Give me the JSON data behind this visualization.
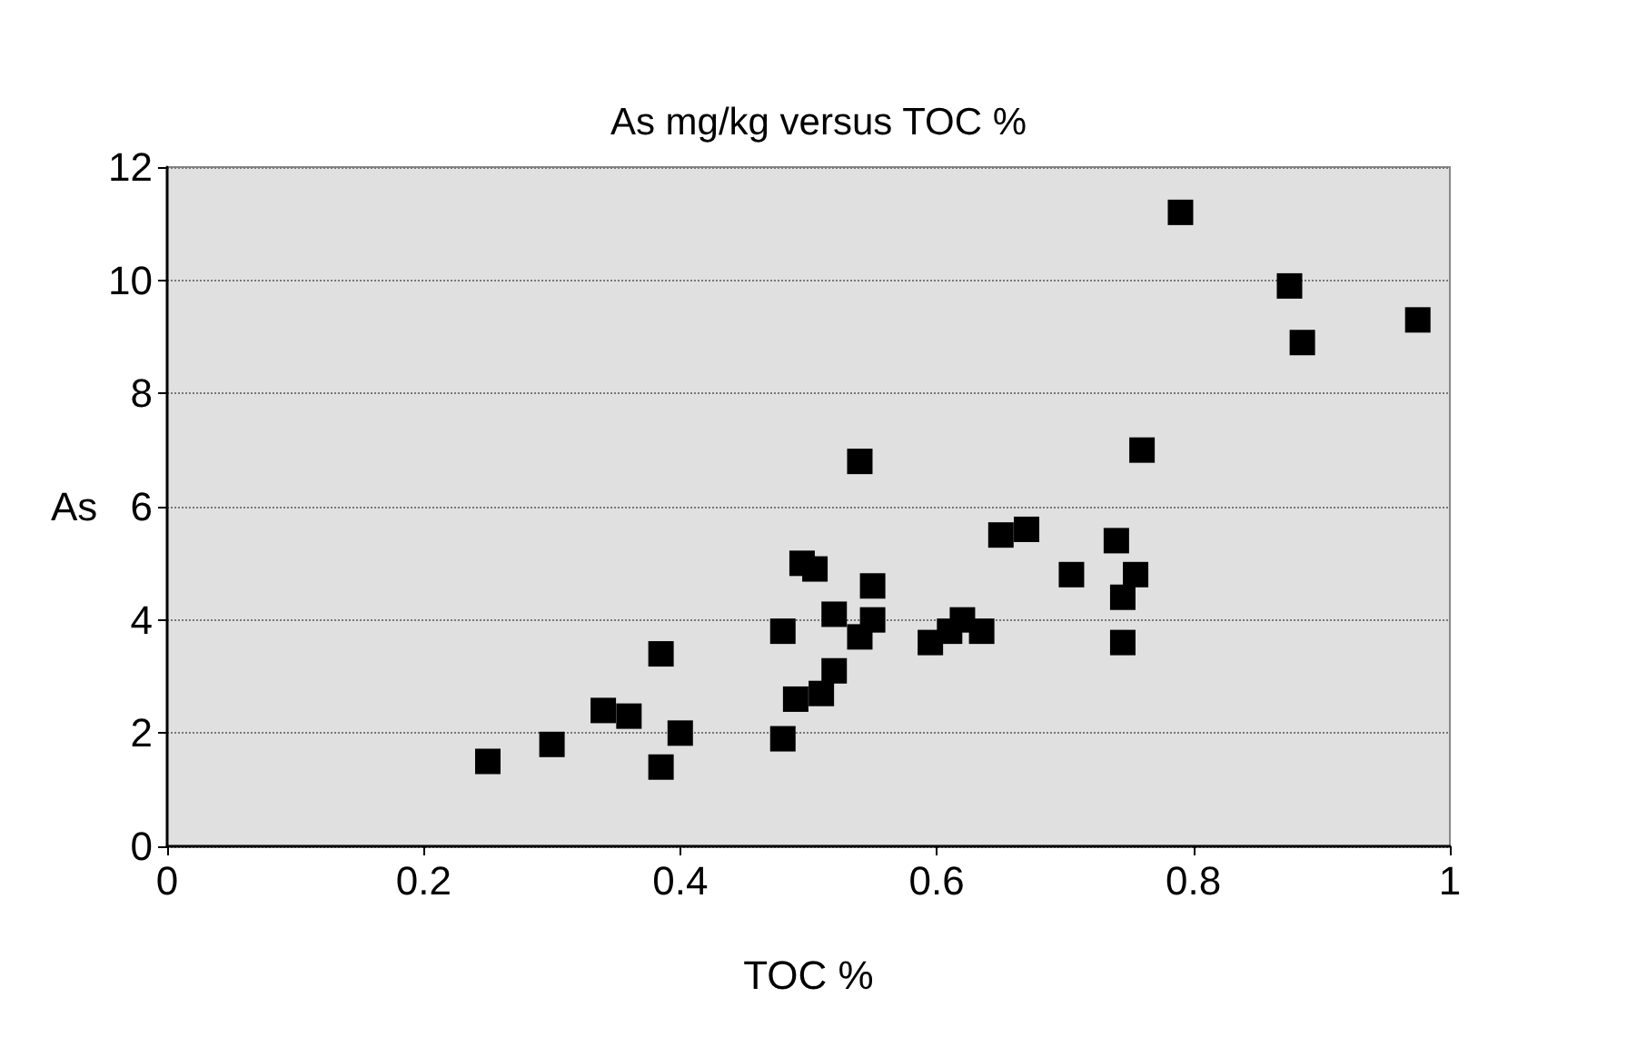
{
  "chart_data": {
    "type": "scatter",
    "title": "As mg/kg versus TOC %",
    "xlabel": "TOC %",
    "ylabel": "As",
    "x": [
      0.25,
      0.3,
      0.34,
      0.36,
      0.385,
      0.385,
      0.4,
      0.48,
      0.48,
      0.49,
      0.495,
      0.505,
      0.51,
      0.52,
      0.52,
      0.54,
      0.54,
      0.55,
      0.55,
      0.595,
      0.61,
      0.62,
      0.635,
      0.65,
      0.67,
      0.705,
      0.74,
      0.745,
      0.745,
      0.755,
      0.76,
      0.79,
      0.875,
      0.885,
      0.975
    ],
    "values": [
      1.5,
      1.8,
      2.4,
      2.3,
      3.4,
      1.4,
      2.0,
      1.9,
      3.8,
      2.6,
      5.0,
      4.9,
      2.7,
      4.1,
      3.1,
      3.7,
      6.8,
      4.0,
      4.6,
      3.6,
      3.8,
      4.0,
      3.8,
      5.5,
      5.6,
      4.8,
      5.4,
      4.4,
      3.6,
      4.8,
      7.0,
      11.2,
      9.9,
      8.9,
      9.3
    ],
    "color": "#000000",
    "marker": "square",
    "xlim": [
      0,
      1
    ],
    "xticks": [
      0,
      0.2,
      0.4,
      0.6,
      0.8,
      1
    ],
    "ylim": [
      0,
      12
    ],
    "yticks": [
      0,
      2,
      4,
      6,
      8,
      10,
      12
    ],
    "grid": "y"
  }
}
